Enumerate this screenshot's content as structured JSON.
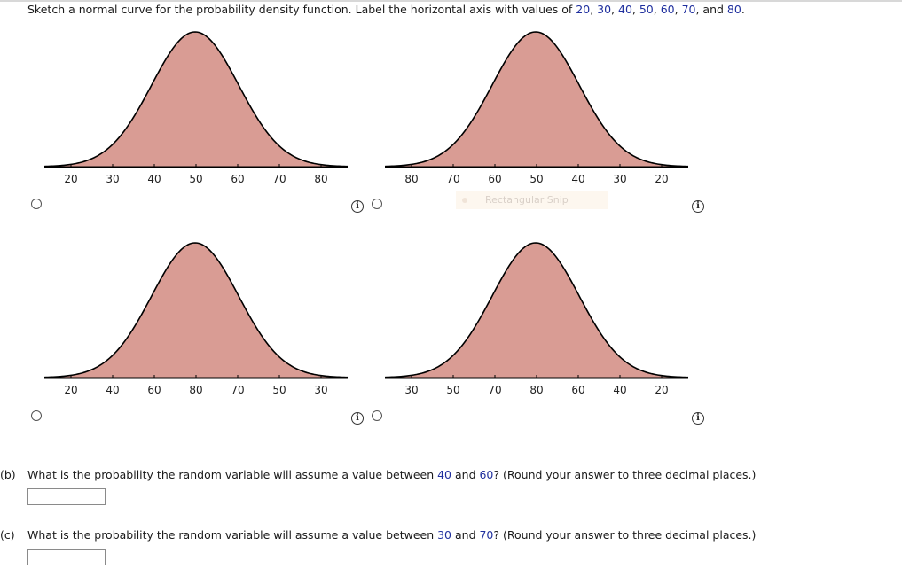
{
  "instruction": {
    "parts": [
      {
        "t": "Sketch a normal curve for the probability density function. Label the horizontal axis with values of ",
        "c": "text"
      },
      {
        "t": "20",
        "c": "num"
      },
      {
        "t": ", ",
        "c": "text"
      },
      {
        "t": "30",
        "c": "num"
      },
      {
        "t": ", ",
        "c": "text"
      },
      {
        "t": "40",
        "c": "num"
      },
      {
        "t": ", ",
        "c": "text"
      },
      {
        "t": "50",
        "c": "num"
      },
      {
        "t": ", ",
        "c": "text"
      },
      {
        "t": "60",
        "c": "num"
      },
      {
        "t": ", ",
        "c": "text"
      },
      {
        "t": "70",
        "c": "num"
      },
      {
        "t": ", and ",
        "c": "text"
      },
      {
        "t": "80",
        "c": "num"
      },
      {
        "t": ".",
        "c": "text"
      }
    ]
  },
  "options": [
    {
      "axis_labels": [
        "20",
        "30",
        "40",
        "50",
        "60",
        "70",
        "80"
      ]
    },
    {
      "axis_labels": [
        "80",
        "70",
        "60",
        "50",
        "40",
        "30",
        "20"
      ]
    },
    {
      "axis_labels": [
        "20",
        "40",
        "60",
        "80",
        "70",
        "50",
        "30"
      ]
    },
    {
      "axis_labels": [
        "30",
        "50",
        "70",
        "80",
        "60",
        "40",
        "20"
      ]
    }
  ],
  "info_icon_glyph": "i",
  "snip_overlay": {
    "label": "Rectangular Snip"
  },
  "question_b": {
    "parts": [
      {
        "t": "(b)",
        "c": "lab"
      },
      {
        "t": "What is the probability the random variable will assume a value between ",
        "c": "text"
      },
      {
        "t": "40",
        "c": "num"
      },
      {
        "t": " and ",
        "c": "text"
      },
      {
        "t": "60",
        "c": "num"
      },
      {
        "t": "? (Round your answer to three decimal places.)",
        "c": "text"
      }
    ],
    "answer_value": ""
  },
  "question_c": {
    "parts": [
      {
        "t": "(c)",
        "c": "lab"
      },
      {
        "t": "What is the probability the random variable will assume a value between ",
        "c": "text"
      },
      {
        "t": "30",
        "c": "num"
      },
      {
        "t": " and ",
        "c": "text"
      },
      {
        "t": "70",
        "c": "num"
      },
      {
        "t": "? (Round your answer to three decimal places.)",
        "c": "text"
      }
    ],
    "answer_value": ""
  },
  "colors": {
    "fill": "#d99c94",
    "curve": "#000000",
    "axis": "#000000",
    "number_highlight": "#1f2f9e"
  }
}
